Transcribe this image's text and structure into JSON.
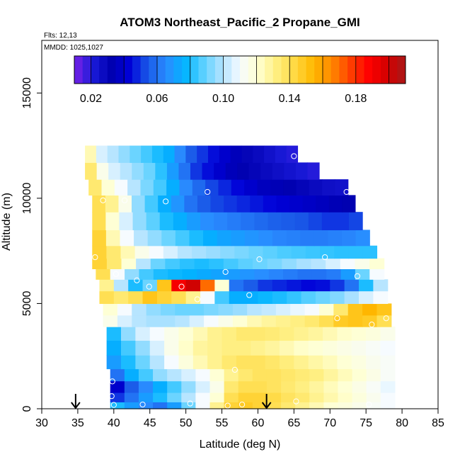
{
  "chart_data": {
    "type": "heatmap",
    "title": "ATOM3 Northeast_Pacific_2 Propane_GMI",
    "flights_label": "Flts: 12,13",
    "dates_label": "MMDD: 1025,1027",
    "xlabel": "Latitude (deg N)",
    "ylabel": "Altitude (m)",
    "xlim": [
      30,
      85
    ],
    "ylim": [
      0,
      17500
    ],
    "x_ticks": [
      30,
      35,
      40,
      45,
      50,
      55,
      60,
      65,
      70,
      75,
      80,
      85
    ],
    "y_ticks": [
      0,
      5000,
      10000,
      15000
    ],
    "colorbar": {
      "range": [
        0.01,
        0.21
      ],
      "tick_values": [
        0.02,
        0.06,
        0.1,
        0.14,
        0.18
      ],
      "tick_labels": [
        "0.02",
        "0.06",
        "0.10",
        "0.14",
        "0.18"
      ],
      "colors": [
        "#7a22e8",
        "#1a1ad8",
        "#0000b0",
        "#0000d8",
        "#1a5ae8",
        "#2a8cff",
        "#00b4ff",
        "#5ad0ff",
        "#b0e2ff",
        "#f6fbff",
        "#ffffd0",
        "#ffef80",
        "#ffd840",
        "#ffb800",
        "#ff8800",
        "#ff4000",
        "#ff0000",
        "#d40000",
        "#a81818"
      ]
    },
    "altitude_bands": [
      {
        "alt": 12100,
        "lat_start": 36,
        "lat_end": 65.5,
        "values": [
          0.125,
          0.105,
          0.1,
          0.095,
          0.09,
          0.085,
          0.08,
          0.075,
          0.065,
          0.055,
          0.05,
          0.045,
          0.04,
          0.035,
          0.03,
          0.028,
          0.025,
          0.022,
          0.02
        ]
      },
      {
        "alt": 11300,
        "lat_start": 36,
        "lat_end": 68.5,
        "values": [
          0.135,
          0.115,
          0.105,
          0.1,
          0.095,
          0.09,
          0.082,
          0.07,
          0.06,
          0.05,
          0.045,
          0.04,
          0.035,
          0.032,
          0.03,
          0.028,
          0.026,
          0.024,
          0.022,
          0.02
        ]
      },
      {
        "alt": 10500,
        "lat_start": 36.5,
        "lat_end": 72.5,
        "values": [
          0.135,
          0.12,
          0.11,
          0.1,
          0.092,
          0.085,
          0.075,
          0.065,
          0.058,
          0.052,
          0.048,
          0.044,
          0.04,
          0.036,
          0.034,
          0.032,
          0.03,
          0.028,
          0.026,
          0.025
        ]
      },
      {
        "alt": 9800,
        "lat_start": 37,
        "lat_end": 73.5,
        "values": [
          0.14,
          0.13,
          0.115,
          0.095,
          0.085,
          0.075,
          0.068,
          0.06,
          0.055,
          0.052,
          0.05,
          0.048,
          0.046,
          0.044,
          0.042,
          0.04,
          0.038,
          0.036,
          0.034,
          0.032
        ]
      },
      {
        "alt": 8900,
        "lat_start": 37,
        "lat_end": 74.5,
        "values": [
          0.14,
          0.12,
          0.105,
          0.095,
          0.088,
          0.08,
          0.075,
          0.07,
          0.066,
          0.064,
          0.062,
          0.06,
          0.058,
          0.056,
          0.055,
          0.054,
          0.052,
          0.05,
          0.05,
          0.052
        ]
      },
      {
        "alt": 8100,
        "lat_start": 37,
        "lat_end": 75.5,
        "values": [
          0.145,
          0.125,
          0.11,
          0.1,
          0.095,
          0.09,
          0.085,
          0.08,
          0.075,
          0.072,
          0.07,
          0.068,
          0.066,
          0.064,
          0.063,
          0.062,
          0.062,
          0.063,
          0.064,
          0.066
        ]
      },
      {
        "alt": 7400,
        "lat_start": 37,
        "lat_end": 76.5,
        "values": [
          0.145,
          0.135,
          0.125,
          0.115,
          0.11,
          0.105,
          0.1,
          0.098,
          0.096,
          0.094,
          0.092,
          0.09,
          0.088,
          0.086,
          0.085,
          0.084,
          0.083,
          0.082,
          0.082,
          0.082
        ]
      },
      {
        "alt": 6900,
        "lat_start": 37,
        "lat_end": 77.5,
        "values": [
          0.145,
          0.135,
          0.12,
          0.1,
          0.09,
          0.085,
          0.082,
          0.08,
          0.082,
          0.085,
          0.088,
          0.09,
          0.092,
          0.095,
          0.098,
          0.1,
          0.105,
          0.11,
          0.115,
          0.12
        ]
      },
      {
        "alt": 6400,
        "lat_start": 37.5,
        "lat_end": 77.5,
        "values": [
          0.14,
          0.11,
          0.095,
          0.085,
          0.08,
          0.078,
          0.076,
          0.074,
          0.072,
          0.07,
          0.068,
          0.066,
          0.064,
          0.062,
          0.06,
          0.06,
          0.062,
          0.07,
          0.09,
          0.11
        ]
      },
      {
        "alt": 5900,
        "lat_start": 38,
        "lat_end": 78,
        "values": [
          0.13,
          0.1,
          0.08,
          0.09,
          0.15,
          0.19,
          0.2,
          0.17,
          0.12,
          0.06,
          0.055,
          0.05,
          0.048,
          0.046,
          0.044,
          0.045,
          0.05,
          0.06,
          0.08,
          0.1
        ]
      },
      {
        "alt": 5300,
        "lat_start": 38,
        "lat_end": 78,
        "values": [
          0.14,
          0.135,
          0.14,
          0.15,
          0.145,
          0.14,
          0.13,
          0.11,
          0.085,
          0.075,
          0.075,
          0.078,
          0.08,
          0.083,
          0.087,
          0.09,
          0.093,
          0.098,
          0.105,
          0.11
        ]
      },
      {
        "alt": 4700,
        "lat_start": 38.5,
        "lat_end": 78.5,
        "values": [
          0.12,
          0.11,
          0.1,
          0.095,
          0.092,
          0.09,
          0.09,
          0.092,
          0.094,
          0.096,
          0.1,
          0.102,
          0.105,
          0.108,
          0.11,
          0.12,
          0.135,
          0.15,
          0.155,
          0.15
        ]
      },
      {
        "alt": 4200,
        "lat_start": 38.5,
        "lat_end": 78.5,
        "values": [
          0.115,
          0.105,
          0.1,
          0.098,
          0.098,
          0.1,
          0.105,
          0.11,
          0.115,
          0.12,
          0.125,
          0.128,
          0.13,
          0.132,
          0.135,
          0.14,
          0.148,
          0.15,
          0.148,
          0.14
        ]
      },
      {
        "alt": 3600,
        "lat_start": 39,
        "lat_end": 79,
        "values": [
          0.08,
          0.095,
          0.105,
          0.11,
          0.115,
          0.12,
          0.125,
          0.13,
          0.132,
          0.135,
          0.135,
          0.134,
          0.132,
          0.13,
          0.128,
          0.125,
          0.122,
          0.12,
          0.118,
          0.115
        ]
      },
      {
        "alt": 2900,
        "lat_start": 39,
        "lat_end": 79,
        "values": [
          0.075,
          0.085,
          0.095,
          0.105,
          0.115,
          0.122,
          0.128,
          0.13,
          0.132,
          0.132,
          0.13,
          0.128,
          0.125,
          0.122,
          0.12,
          0.118,
          0.116,
          0.114,
          0.112,
          0.11
        ]
      },
      {
        "alt": 2200,
        "lat_start": 39,
        "lat_end": 79,
        "values": [
          0.07,
          0.08,
          0.09,
          0.1,
          0.11,
          0.118,
          0.125,
          0.13,
          0.135,
          0.138,
          0.138,
          0.136,
          0.133,
          0.13,
          0.127,
          0.124,
          0.12,
          0.117,
          0.114,
          0.112
        ]
      },
      {
        "alt": 1600,
        "lat_start": 39.5,
        "lat_end": 79,
        "values": [
          0.06,
          0.075,
          0.085,
          0.095,
          0.1,
          0.105,
          0.11,
          0.12,
          0.13,
          0.135,
          0.138,
          0.138,
          0.136,
          0.134,
          0.132,
          0.128,
          0.124,
          0.12,
          0.116,
          0.112
        ]
      },
      {
        "alt": 1050,
        "lat_start": 39.5,
        "lat_end": 79,
        "values": [
          0.04,
          0.055,
          0.065,
          0.075,
          0.085,
          0.095,
          0.105,
          0.115,
          0.135,
          0.14,
          0.14,
          0.138,
          0.135,
          0.132,
          0.128,
          0.124,
          0.12,
          0.116,
          0.112,
          0.108
        ]
      },
      {
        "alt": 500,
        "lat_start": 39.5,
        "lat_end": 79,
        "values": [
          0.05,
          0.06,
          0.07,
          0.08,
          0.09,
          0.1,
          0.11,
          0.12,
          0.14,
          0.145,
          0.145,
          0.142,
          0.138,
          0.135,
          0.13,
          0.126,
          0.122,
          0.118,
          0.114,
          0.11
        ]
      },
      {
        "alt": 150,
        "lat_start": 39.5,
        "lat_end": 79,
        "values": [
          0.08,
          0.07,
          0.065,
          0.06,
          0.07,
          0.09,
          0.11,
          0.13,
          0.145,
          0.148,
          0.145,
          0.14,
          0.135,
          0.13,
          0.125,
          0.12,
          0.118,
          0.115,
          0.112,
          0.11
        ]
      }
    ],
    "sample_points": [
      {
        "lat": 65,
        "alt": 12000
      },
      {
        "lat": 53,
        "alt": 10300
      },
      {
        "lat": 72.3,
        "alt": 10300
      },
      {
        "lat": 38.5,
        "alt": 9900
      },
      {
        "lat": 41.5,
        "alt": 9900
      },
      {
        "lat": 47.2,
        "alt": 9850
      },
      {
        "lat": 37.4,
        "alt": 7200
      },
      {
        "lat": 60.2,
        "alt": 7100
      },
      {
        "lat": 69.3,
        "alt": 7200
      },
      {
        "lat": 55.5,
        "alt": 6500
      },
      {
        "lat": 40.3,
        "alt": 6400
      },
      {
        "lat": 43.2,
        "alt": 6100
      },
      {
        "lat": 73.8,
        "alt": 6300
      },
      {
        "lat": 44.9,
        "alt": 5800
      },
      {
        "lat": 49.4,
        "alt": 5800
      },
      {
        "lat": 58.8,
        "alt": 5400
      },
      {
        "lat": 51.6,
        "alt": 5200
      },
      {
        "lat": 71,
        "alt": 4300
      },
      {
        "lat": 75.8,
        "alt": 4000
      },
      {
        "lat": 77.8,
        "alt": 4300
      },
      {
        "lat": 56.8,
        "alt": 1850
      },
      {
        "lat": 39.8,
        "alt": 1300
      },
      {
        "lat": 39.7,
        "alt": 600
      },
      {
        "lat": 40,
        "alt": 180
      },
      {
        "lat": 44,
        "alt": 200
      },
      {
        "lat": 50.6,
        "alt": 250
      },
      {
        "lat": 55.8,
        "alt": 150
      },
      {
        "lat": 57.8,
        "alt": 200
      },
      {
        "lat": 65.3,
        "alt": 350
      },
      {
        "lat": 75.4,
        "alt": 200
      }
    ],
    "arrows": [
      {
        "lat": 34.7,
        "alt": 0
      },
      {
        "lat": 61.2,
        "alt": 0
      }
    ]
  }
}
